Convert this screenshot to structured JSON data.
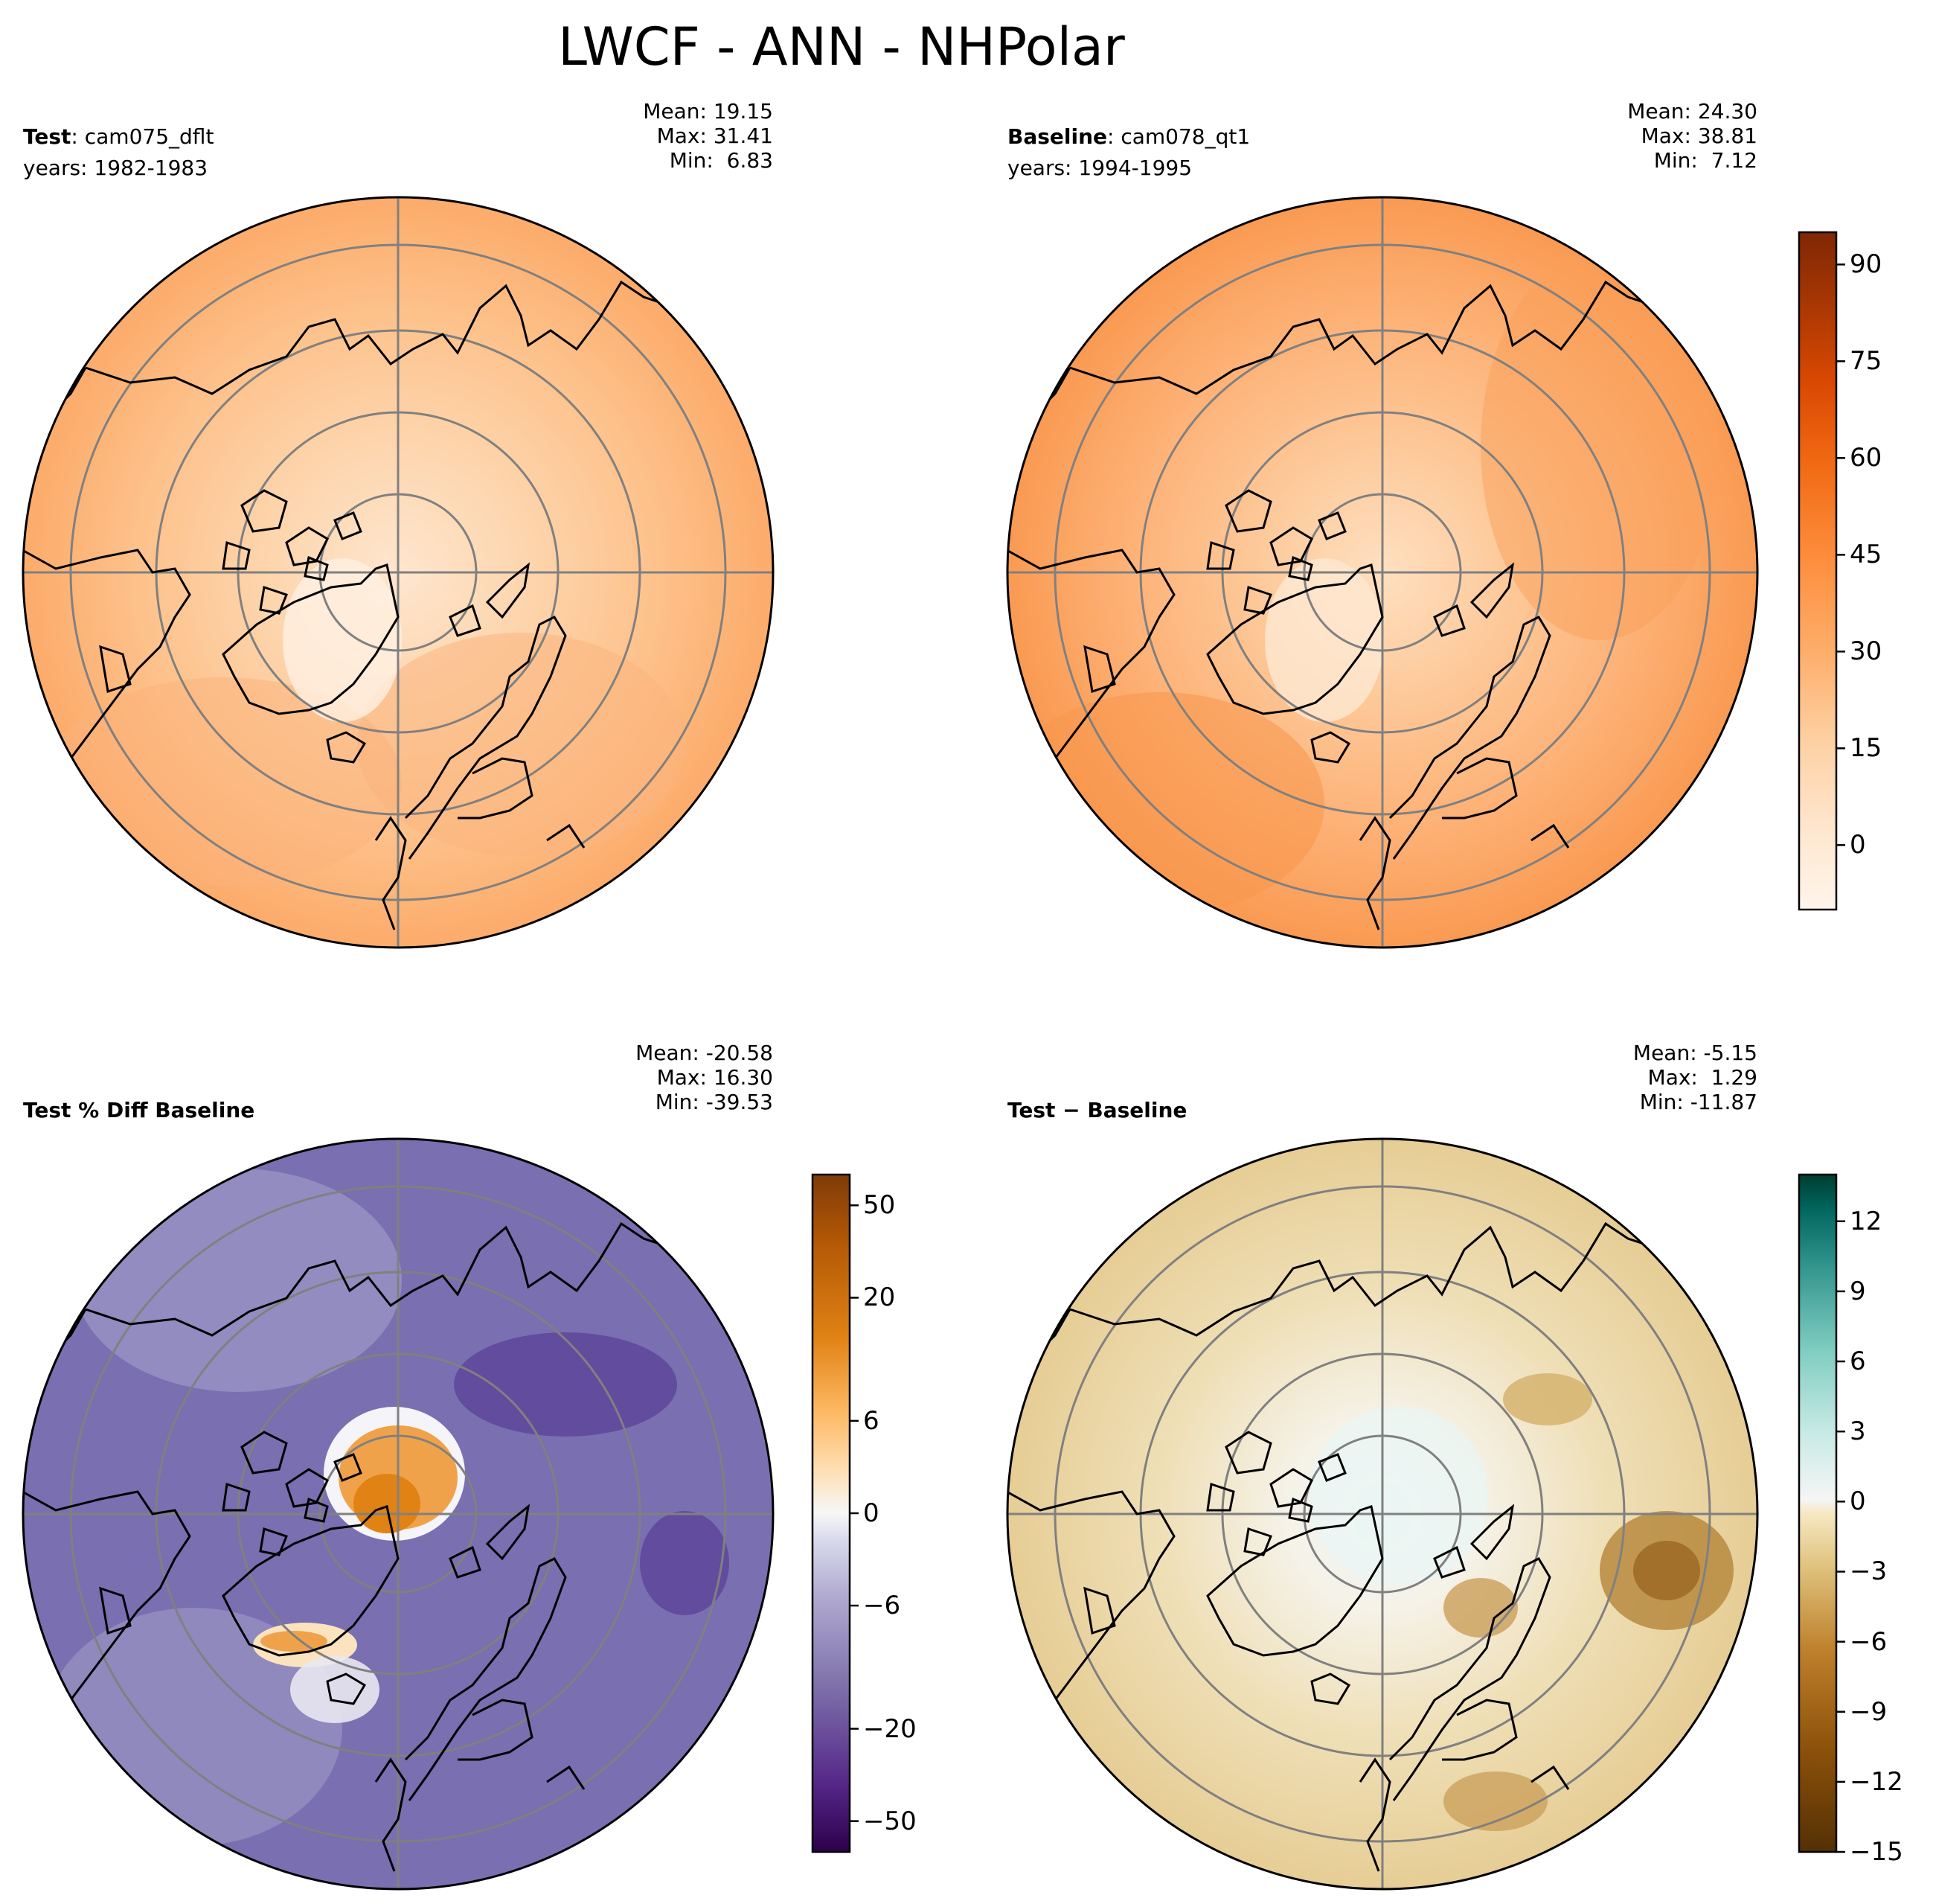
{
  "figure": {
    "title": "LWCF - ANN - NHPolar"
  },
  "panels": [
    {
      "id": "test",
      "label_bold": "Test",
      "label_rest": ": cam075_dflt",
      "years": "years: 1982-1983",
      "stats": {
        "mean": "Mean: 19.15",
        "max": "Max: 31.41",
        "min": "Min:  6.83"
      }
    },
    {
      "id": "baseline",
      "label_bold": "Baseline",
      "label_rest": ": cam078_qt1",
      "years": "years: 1994-1995",
      "stats": {
        "mean": "Mean: 24.30",
        "max": "Max: 38.81",
        "min": "Min:  7.12"
      }
    },
    {
      "id": "pct-diff",
      "label_bold": "Test % Diff Baseline",
      "label_rest": "",
      "years": "",
      "stats": {
        "mean": "Mean: -20.58",
        "max": "Max: 16.30",
        "min": "Min: -39.53"
      }
    },
    {
      "id": "diff",
      "label_bold": "Test",
      "label_rest": " − Baseline",
      "years": "",
      "stats": {
        "mean": "Mean: -5.15",
        "max": "Max:  1.29",
        "min": "Min: -11.87"
      }
    }
  ],
  "colorbars": {
    "main": {
      "ticks": [
        "90",
        "75",
        "60",
        "45",
        "30",
        "15",
        "0"
      ],
      "values": [
        90,
        75,
        60,
        45,
        30,
        15,
        0
      ],
      "range": [
        -10,
        95
      ]
    },
    "pct": {
      "ticks": [
        "50",
        "20",
        "6",
        "0",
        "−6",
        "−20",
        "−50"
      ],
      "levels": [
        -70,
        -50,
        -40,
        -30,
        -20,
        -15,
        -10,
        -8,
        -6,
        -4,
        -2,
        0,
        2,
        4,
        6,
        8,
        10,
        15,
        20,
        30,
        40,
        50,
        70
      ]
    },
    "diff": {
      "ticks": [
        "12",
        "9",
        "6",
        "3",
        "0",
        "−3",
        "−6",
        "−9",
        "−12",
        "−15"
      ],
      "values": [
        12,
        9,
        6,
        3,
        0,
        -3,
        -6,
        -9,
        -12,
        -15
      ],
      "range": [
        -15,
        14
      ]
    }
  },
  "colors": {
    "main_scale": [
      "#fff5eb",
      "#fee6ce",
      "#fdd0a2",
      "#fdae6b",
      "#fd8d3c",
      "#f16913",
      "#d94801",
      "#a63603",
      "#7f2704"
    ],
    "pct_neg": [
      "#3f007d",
      "#54278f",
      "#6a51a3",
      "#807dba",
      "#9e9ac8",
      "#bcbddc",
      "#dadaeb",
      "#f2f0f7"
    ],
    "pct_pos": [
      "#f7f7f7",
      "#fee0b6",
      "#fdb863",
      "#e08214",
      "#b35806",
      "#7f3b08"
    ],
    "diff_neg": [
      "#543005",
      "#8c510a",
      "#bf812d",
      "#dfc27d",
      "#f6e8c3",
      "#f5f5f5"
    ],
    "diff_pos": [
      "#f5f5f5",
      "#c7eae5",
      "#80cdc1",
      "#35978f",
      "#01665e",
      "#003c30"
    ]
  }
}
